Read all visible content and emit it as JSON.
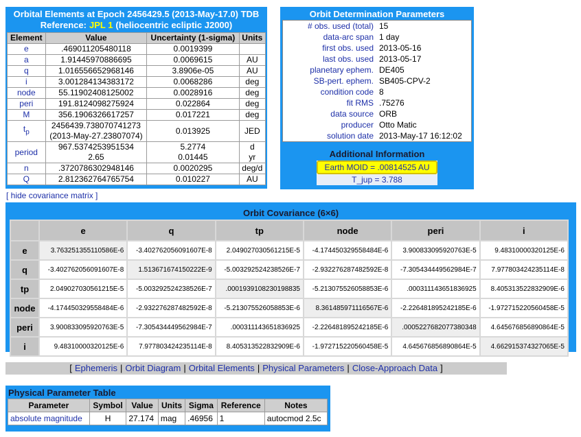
{
  "orbital_elements": {
    "title": "Orbital Elements at Epoch 2456429.5 (2013-May-17.0) TDB",
    "reference": {
      "prefix": "Reference:",
      "link": "JPL 1",
      "suffix": "(heliocentric ecliptic J2000)"
    },
    "columns": [
      "Element",
      "Value",
      "Uncertainty (1-sigma)",
      "Units"
    ],
    "rows": [
      {
        "element": "e",
        "value": ".469011205480118",
        "uncertainty": "0.0019399"
      },
      {
        "element": "a",
        "value": "1.91445970886695",
        "uncertainty": "0.0069615",
        "units": "AU"
      },
      {
        "element": "q",
        "value": "1.016556652968146",
        "uncertainty": "3.8906e-05",
        "units": "AU"
      },
      {
        "element": "i",
        "value": "3.001284134383172",
        "uncertainty": "0.0068286",
        "units": "deg"
      },
      {
        "element": "node",
        "value": "55.11902408125002",
        "uncertainty": "0.0028916",
        "units": "deg"
      },
      {
        "element": "peri",
        "value": "191.8124098275924",
        "uncertainty": "0.022864",
        "units": "deg"
      },
      {
        "element": "M",
        "value": "356.1906326617257",
        "uncertainty": "0.017221",
        "units": "deg"
      },
      {
        "element": "t",
        "subscript": "p",
        "value": [
          "2456439.738070741273",
          "(2013-May-27.23807074)"
        ],
        "uncertainty": "0.013925",
        "units": "JED"
      },
      {
        "element": "period",
        "value": [
          "967.5374253951534",
          "2.65"
        ],
        "uncertainty": [
          "5.2774",
          "0.01445"
        ],
        "units": [
          "d",
          "yr"
        ]
      },
      {
        "element": "n",
        "value": ".3720786302948146",
        "uncertainty": "0.0020295",
        "units": "deg/d"
      },
      {
        "element": "Q",
        "value": "2.812362764765754",
        "uncertainty": "0.010227",
        "units": "AU"
      }
    ]
  },
  "orbit_determination": {
    "title": "Orbit Determination Parameters",
    "rows": [
      [
        "# obs. used (total)",
        "15"
      ],
      [
        "data-arc span",
        "1 day"
      ],
      [
        "first obs. used",
        "2013-05-16"
      ],
      [
        "last obs. used",
        "2013-05-17"
      ],
      [
        "planetary ephem.",
        "DE405"
      ],
      [
        "SB-pert. ephem.",
        "SB405-CPV-2"
      ],
      [
        "condition code",
        "8"
      ],
      [
        "fit RMS",
        ".75276"
      ],
      [
        "data source",
        "ORB"
      ],
      [
        "producer",
        "Otto Matic"
      ],
      [
        "solution date",
        "2013-May-17 16:12:02"
      ]
    ],
    "additional": {
      "title": "Additional Information",
      "moid": "Earth MOID = .00814525 AU",
      "tjup": "T_jup = 3.788"
    }
  },
  "covariance_toggle": "[ hide covariance matrix ]",
  "covariance": {
    "title": "Orbit Covariance (6×6)",
    "columns": [
      "e",
      "q",
      "tp",
      "node",
      "peri",
      "i"
    ],
    "rows": [
      [
        "3.763251355110586E-6",
        "-3.402762056091607E-8",
        "2.049027030561215E-5",
        "-4.174450329558484E-6",
        "3.900833095920763E-5",
        "9.48310000320125E-6"
      ],
      [
        "-3.402762056091607E-8",
        "1.513671674150222E-9",
        "-5.003292524238526E-7",
        "-2.932276287482592E-8",
        "-7.305434449562984E-7",
        "7.977803424235114E-8"
      ],
      [
        "2.049027030561215E-5",
        "-5.003292524238526E-7",
        ".0001939108230198835",
        "-5.213075526058853E-6",
        ".000311143651836925",
        "8.405313522832909E-6"
      ],
      [
        "-4.174450329558484E-6",
        "-2.932276287482592E-8",
        "-5.213075526058853E-6",
        "8.361485971116567E-6",
        "-2.226481895242185E-6",
        "-1.972715220560458E-5"
      ],
      [
        "3.900833095920763E-5",
        "-7.305434449562984E-7",
        ".000311143651836925",
        "-2.226481895242185E-6",
        ".0005227682077380348",
        "4.645676856890864E-5"
      ],
      [
        "9.48310000320125E-6",
        "7.977803424235114E-8",
        "8.405313522832909E-6",
        "-1.972715220560458E-5",
        "4.645676856890864E-5",
        "4.662915374327065E-5"
      ]
    ]
  },
  "nav": {
    "open": "[",
    "separator": "|",
    "close": "]",
    "links": [
      "Ephemeris",
      "Orbit Diagram",
      "Orbital Elements",
      "Physical Parameters",
      "Close-Approach Data"
    ]
  },
  "physical": {
    "title": "Physical Parameter Table",
    "columns": [
      "Parameter",
      "Symbol",
      "Value",
      "Units",
      "Sigma",
      "Reference",
      "Notes"
    ],
    "rows": [
      [
        "absolute magnitude",
        "H",
        "27.174",
        "mag",
        ".46956",
        "1",
        "autocmod 2.5c"
      ]
    ]
  }
}
